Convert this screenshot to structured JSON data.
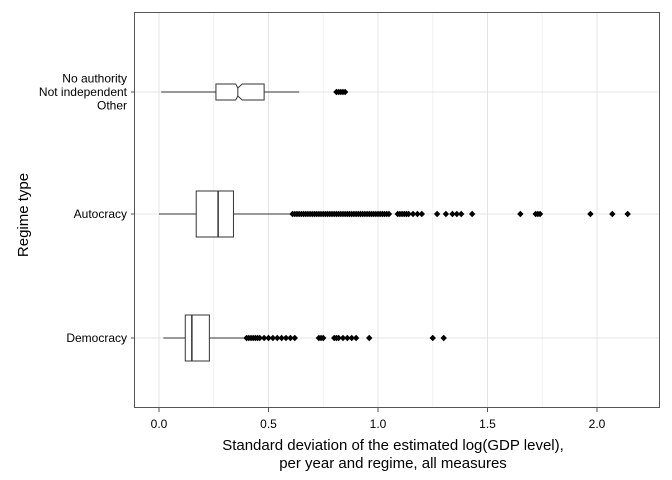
{
  "chart_data": {
    "type": "boxplot",
    "orientation": "horizontal",
    "title": "",
    "xlabel_lines": [
      "Standard deviation of the estimated log(GDP level),",
      "per year and regime, all measures"
    ],
    "ylabel": "Regime type",
    "xlim": [
      -0.1,
      2.2
    ],
    "x_ticks": [
      0.0,
      0.5,
      1.0,
      1.5,
      2.0
    ],
    "x_tick_labels": [
      "0.0",
      "0.5",
      "1.0",
      "1.5",
      "2.0"
    ],
    "grid": true,
    "legend": "none",
    "categories": [
      {
        "label_lines": [
          "No authority",
          "Not independent",
          "Other"
        ],
        "notched": true,
        "whisker_low": 0.01,
        "q1": 0.26,
        "notch_low": 0.35,
        "median": 0.36,
        "notch_high": 0.38,
        "q3": 0.48,
        "whisker_high": 0.64,
        "outliers": [
          0.81,
          0.82,
          0.83,
          0.84,
          0.85
        ]
      },
      {
        "label_lines": [
          "Autocracy"
        ],
        "notched": false,
        "whisker_low": 0.0,
        "q1": 0.17,
        "median": 0.27,
        "q3": 0.34,
        "whisker_high": 0.6,
        "outliers": [
          0.61,
          0.62,
          0.63,
          0.64,
          0.65,
          0.66,
          0.67,
          0.68,
          0.69,
          0.7,
          0.71,
          0.72,
          0.73,
          0.74,
          0.75,
          0.76,
          0.77,
          0.78,
          0.79,
          0.8,
          0.81,
          0.82,
          0.83,
          0.84,
          0.85,
          0.86,
          0.87,
          0.88,
          0.89,
          0.9,
          0.91,
          0.92,
          0.93,
          0.94,
          0.95,
          0.96,
          0.97,
          0.98,
          0.99,
          1.0,
          1.01,
          1.02,
          1.03,
          1.04,
          1.05,
          1.09,
          1.1,
          1.11,
          1.12,
          1.13,
          1.14,
          1.16,
          1.18,
          1.2,
          1.27,
          1.31,
          1.34,
          1.36,
          1.38,
          1.43,
          1.65,
          1.72,
          1.73,
          1.74,
          1.97,
          2.07,
          2.14
        ]
      },
      {
        "label_lines": [
          "Democracy"
        ],
        "notched": false,
        "whisker_low": 0.02,
        "q1": 0.12,
        "median": 0.15,
        "q3": 0.23,
        "whisker_high": 0.39,
        "outliers": [
          0.4,
          0.41,
          0.42,
          0.43,
          0.44,
          0.45,
          0.46,
          0.48,
          0.5,
          0.52,
          0.54,
          0.56,
          0.58,
          0.6,
          0.62,
          0.73,
          0.74,
          0.75,
          0.8,
          0.81,
          0.82,
          0.84,
          0.86,
          0.88,
          0.9,
          0.96,
          1.25,
          1.3
        ]
      }
    ]
  }
}
